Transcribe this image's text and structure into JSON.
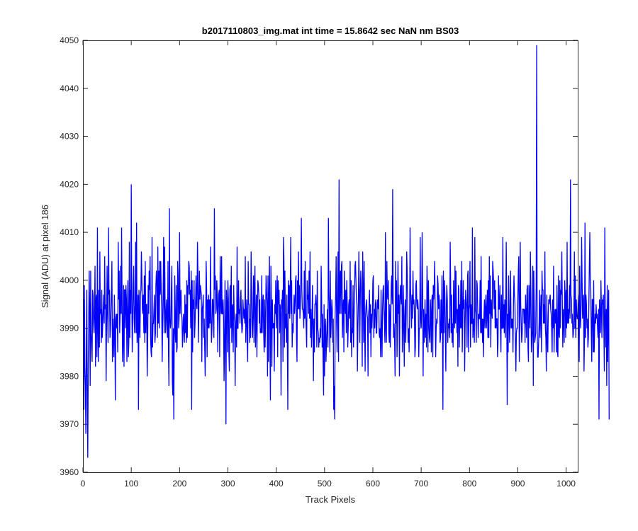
{
  "chart_data": {
    "type": "line",
    "title": "b2017110803_img.mat int time = 15.8642 sec  NaN nm BS03",
    "xlabel": "Track Pixels",
    "ylabel": "Signal (ADU) at pixel 186",
    "xlim": [
      0,
      1024
    ],
    "ylim": [
      3960,
      4050
    ],
    "xticks": [
      "0",
      "100",
      "200",
      "300",
      "400",
      "500",
      "600",
      "700",
      "800",
      "900",
      "1000"
    ],
    "yticks": [
      "3960",
      "3970",
      "3980",
      "3990",
      "4000",
      "4010",
      "4020",
      "4030",
      "4040",
      "4050"
    ],
    "grid": false,
    "series": [
      {
        "color": "#0000ff",
        "x_start": 1,
        "x_step": 1,
        "values": [
          3996,
          3973,
          3999,
          3982,
          3978,
          3968,
          3986,
          3998,
          3974,
          3963,
          3982,
          3992,
          4002,
          3993,
          3978,
          4002,
          3989,
          3986,
          3983,
          3998,
          3997,
          3991,
          3989,
          3994,
          4003,
          3982,
          3996,
          3997,
          3984,
          4011,
          3990,
          3983,
          3998,
          3986,
          4006,
          3993,
          3994,
          3987,
          3998,
          3988,
          3991,
          3994,
          3997,
          3991,
          4005,
          3994,
          3995,
          3979,
          3992,
          4003,
          3993,
          3987,
          4011,
          3997,
          3998,
          3988,
          3990,
          3994,
          3998,
          4004,
          3983,
          3992,
          3988,
          3984,
          3997,
          3991,
          3975,
          3992,
          3993,
          3990,
          3993,
          3985,
          4008,
          3996,
          4002,
          3989,
          3993,
          4003,
          3993,
          4011,
          3996,
          3983,
          3987,
          3999,
          3982,
          3998,
          3998,
          3990,
          3999,
          3996,
          3983,
          3993,
          4000,
          3984,
          3987,
          4008,
          3988,
          3998,
          3993,
          4020,
          3998,
          3985,
          3991,
          3999,
          4003,
          3992,
          3989,
          3995,
          4008,
          3989,
          4012,
          3987,
          3992,
          3997,
          3973,
          3998,
          3991,
          3988,
          3997,
          3998,
          4006,
          4000,
          3994,
          3993,
          3997,
          3989,
          4001,
          3987,
          4004,
          3989,
          3995,
          3995,
          3980,
          3987,
          3999,
          3993,
          4002,
          3998,
          4005,
          3988,
          3985,
          3984,
          4009,
          3986,
          3991,
          3991,
          3994,
          3997,
          3987,
          3989,
          3999,
          4002,
          3999,
          3988,
          4007,
          3991,
          4002,
          3990,
          4004,
          3997,
          4004,
          3998,
          3994,
          3983,
          3991,
          3998,
          4009,
          3989,
          4007,
          3996,
          3989,
          3993,
          3996,
          3990,
          3988,
          4004,
          3985,
          3978,
          4015,
          3992,
          3990,
          3991,
          3998,
          4003,
          3979,
          3976,
          3990,
          3971,
          3988,
          4001,
          3989,
          3987,
          3999,
          3985,
          3986,
          4004,
          4001,
          3990,
          3992,
          4010,
          3993,
          3997,
          3998,
          3993,
          3992,
          3986,
          3989,
          3993,
          3990,
          3987,
          3997,
          3989,
          3995,
          3987,
          4000,
          3988,
          3999,
          3997,
          4004,
          4003,
          3997,
          3998,
          3990,
          4002,
          3973,
          4000,
          3985,
          3996,
          3994,
          4000,
          3988,
          3991,
          3995,
          4001,
          3995,
          3994,
          4008,
          4001,
          3987,
          3995,
          4002,
          3996,
          3999,
          3998,
          3997,
          3983,
          3994,
          3995,
          3997,
          3988,
          3992,
          3986,
          3980,
          3991,
          4004,
          3998,
          3984,
          3996,
          3990,
          3997,
          3990,
          3996,
          3991,
          4007,
          3993,
          3987,
          3990,
          3996,
          3996,
          3992,
          3988,
          4015,
          3998,
          4001,
          3993,
          3994,
          4000,
          3997,
          3985,
          3994,
          3997,
          3998,
          3984,
          4005,
          3996,
          3993,
          4005,
          3993,
          3993,
          3996,
          3992,
          3979,
          3985,
          4000,
          3990,
          3970,
          3998,
          3995,
          3985,
          4000,
          3996,
          3985,
          3981,
          3998,
          3999,
          3990,
          4003,
          3987,
          3994,
          3995,
          3985,
          3999,
          3993,
          3991,
          3978,
          3990,
          3993,
          3986,
          4007,
          3990,
          3990,
          4000,
          3993,
          3994,
          3991,
          3996,
          3998,
          3992,
          3989,
          3990,
          3996,
          3994,
          3992,
          3994,
          3991,
          4005,
          3987,
          3992,
          3996,
          3987,
          3983,
          4004,
          3995,
          3995,
          3987,
          3992,
          3988,
          4006,
          3999,
          3991,
          3988,
          3994,
          4001,
          3987,
          3999,
          4003,
          3986,
          3992,
          3997,
          3984,
          3994,
          4000,
          3999,
          3997,
          3991,
          3996,
          3989,
          3990,
          3989,
          4001,
          3989,
          3995,
          3997,
          3989,
          3985,
          3996,
          3986,
          3992,
          4001,
          3998,
          3995,
          3980,
          4001,
          3983,
          3996,
          4005,
          3987,
          3975,
          4003,
          3995,
          3982,
          3996,
          3990,
          3991,
          3991,
          3981,
          3995,
          3993,
          4000,
          3990,
          3995,
          4001,
          3984,
          4000,
          3995,
          3998,
          3989,
          3995,
          3993,
          3976,
          3996,
          3994,
          3998,
          3983,
          4009,
          4004,
          3986,
          4002,
          3990,
          3993,
          3987,
          3997,
          3987,
          3973,
          4000,
          3993,
          3999,
          3992,
          3998,
          4009,
          3993,
          4000,
          3986,
          3991,
          3989,
          3994,
          3997,
          3993,
          3995,
          4000,
          4001,
          3988,
          3983,
          4000,
          3994,
          4006,
          3994,
          3999,
          3992,
          3995,
          4001,
          4013,
          3998,
          3994,
          3994,
          3993,
          3990,
          4002,
          3992,
          4004,
          3993,
          3990,
          3986,
          4000,
          3996,
          3997,
          3993,
          4002,
          3992,
          4006,
          3988,
          3994,
          3986,
          3991,
          3999,
          3990,
          3979,
          3992,
          3985,
          3995,
          3995,
          3997,
          3994,
          3986,
          4002,
          3990,
          3989,
          3986,
          3988,
          3987,
          3990,
          3988,
          4003,
          3996,
          3986,
          3993,
          3983,
          3976,
          3995,
          3980,
          3990,
          3992,
          3983,
          3987,
          3990,
          3994,
          3986,
          4013,
          3998,
          3993,
          3985,
          4002,
          3988,
          3992,
          3996,
          3994,
          3987,
          3992,
          3973,
          3978,
          3971,
          3993,
          3997,
          4005,
          3991,
          3985,
          3999,
          4006,
          3983,
          4021,
          3993,
          3999,
          4002,
          3993,
          4003,
          4004,
          3988,
          3994,
          3996,
          3985,
          4002,
          3995,
          3993,
          3998,
          3989,
          4000,
          3995,
          3986,
          3990,
          3995,
          3996,
          3992,
          4004,
          3987,
          4000,
          3984,
          3990,
          3989,
          3999,
          3986,
          3992,
          3997,
          4003,
          4004,
          4000,
          3996,
          3995,
          3981,
          3990,
          3996,
          4006,
          3998,
          3987,
          3997,
          4002,
          3999,
          3993,
          3982,
          4006,
          3998,
          3987,
          4004,
          3990,
          3981,
          3993,
          3995,
          3996,
          3993,
          3992,
          3980,
          3993,
          3994,
          3998,
          3989,
          3995,
          3984,
          3993,
          3990,
          3993,
          4000,
          4001,
          3988,
          3994,
          3990,
          3995,
          3996,
          3989,
          3989,
          3995,
          3996,
          3994,
          3999,
          3989,
          3988,
          3990,
          3984,
          3998,
          3989,
          3984,
          3994,
          3998,
          3999,
          3994,
          3991,
          3987,
          4010,
          3990,
          3987,
          4004,
          3997,
          3996,
          4000,
          3989,
          3987,
          3995,
          3986,
          3991,
          3999,
          4001,
          3995,
          4019,
          3996,
          3988,
          3991,
          3987,
          3980,
          4004,
          3991,
          4000,
          3984,
          3991,
          4004,
          3993,
          3997,
          3980,
          3995,
          3999,
          3997,
          3995,
          4005,
          3985,
          3990,
          3999,
          3990,
          3982,
          3993,
          3996,
          3987,
          3993,
          4006,
          4002,
          3995,
          3987,
          3990,
          3985,
          3991,
          4011,
          3998,
          3995,
          3990,
          3997,
          3992,
          4002,
          3995,
          3996,
          3993,
          3984,
          3986,
          3999,
          4000,
          3995,
          3994,
          3996,
          3994,
          3984,
          3990,
          3990,
          4009,
          3992,
          3990,
          3994,
          4010,
          3998,
          3980,
          3994,
          3987,
          3990,
          3996,
          3988,
          3993,
          3986,
          4003,
          3998,
          3985,
          4000,
          3991,
          3988,
          3987,
          3996,
          3993,
          3985,
          3996,
          3997,
          3984,
          3999,
          3996,
          3999,
          4004,
          3993,
          3984,
          3990,
          3992,
          3991,
          4001,
          3999,
          3994,
          3997,
          3995,
          3987,
          3988,
          3996,
          3989,
          4001,
          3991,
          3973,
          4002,
          3989,
          4000,
          3997,
          3988,
          3981,
          3994,
          3999,
          3996,
          3987,
          3991,
          3990,
          3992,
          3988,
          4008,
          3999,
          3989,
          3997,
          3987,
          3991,
          3986,
          4000,
          3992,
          3990,
          4003,
          3991,
          4002,
          3994,
          3989,
          3994,
          3982,
          3999,
          3998,
          3986,
          3995,
          3990,
          4000,
          3990,
          4004,
          3985,
          3993,
          4000,
          3994,
          3996,
          3981,
          3991,
          3998,
          3996,
          3994,
          3986,
          4001,
          4002,
          3985,
          3994,
          3995,
          4004,
          3986,
          3995,
          3991,
          3991,
          4011,
          3988,
          3992,
          3991,
          3987,
          4009,
          3994,
          3993,
          3987,
          4000,
          3999,
          3994,
          3988,
          3993,
          3992,
          3992,
          4000,
          3989,
          4005,
          3989,
          3992,
          3987,
          3992,
          3984,
          3993,
          3996,
          3990,
          3994,
          3997,
          3990,
          3993,
          3998,
          3988,
          4000,
          3988,
          4005,
          3993,
          4001,
          3986,
          3996,
          3994,
          3992,
          4004,
          4002,
          3999,
          3994,
          4000,
          3990,
          3998,
          3990,
          3992,
          3992,
          3984,
          3987,
          4001,
          3994,
          3994,
          3999,
          3990,
          3985,
          3997,
          3990,
          3990,
          4009,
          3990,
          3995,
          3989,
          3996,
          3988,
          3993,
          4008,
          3995,
          3974,
          3993,
          3985,
          4001,
          3992,
          3987,
          3995,
          4002,
          3990,
          3992,
          3990,
          3992,
          3985,
          3996,
          4001,
          3997,
          3995,
          3987,
          3981,
          3989,
          3990,
          3990,
          3996,
          4002,
          4005,
          3983,
          3992,
          4008,
          3995,
          3991,
          3987,
          3989,
          3994,
          3994,
          3994,
          3991,
          3994,
          3987,
          3997,
          3993,
          3988,
          3998,
          3999,
          3986,
          3983,
          3999,
          3995,
          3990,
          4006,
          3998,
          3985,
          3987,
          3990,
          4003,
          3978,
          4002,
          3995,
          3987,
          3988,
          3989,
          3999,
          4049,
          3991,
          3984,
          3984,
          3987,
          3991,
          3998,
          3988,
          3993,
          3997,
          3985,
          4002,
          3998,
          3998,
          3991,
          3995,
          3991,
          4006,
          3990,
          3988,
          3981,
          3997,
          3988,
          3985,
          3993,
          3996,
          3995,
          3996,
          3997,
          3994,
          3993,
          3990,
          3985,
          3996,
          3990,
          4003,
          3985,
          3992,
          3994,
          3991,
          3994,
          3985,
          3999,
          3985,
          3984,
          4001,
          3989,
          3988,
          4000,
          3990,
          3998,
          3997,
          4006,
          3996,
          3986,
          3994,
          3992,
          3987,
          4000,
          3997,
          3988,
          3998,
          3990,
          4008,
          3991,
          3994,
          3991,
          3994,
          3999,
          3992,
          4021,
          3997,
          3996,
          3991,
          3993,
          3988,
          3989,
          3992,
          4006,
          3990,
          4001,
          3988,
          3996,
          3993,
          3992,
          3992,
          3997,
          3994,
          3983,
          4003,
          3993,
          3990,
          3995,
          4009,
          4000,
          3992,
          3995,
          3997,
          3981,
          3988,
          4012,
          3988,
          3997,
          3995,
          3990,
          3992,
          3986,
          3988,
          3995,
          4003,
          4010,
          3999,
          3998,
          3989,
          3983,
          3996,
          3996,
          3985,
          4000,
          3985,
          3990,
          3993,
          3991,
          3995,
          3992,
          3993,
          3990,
          3988,
          3994,
          3971,
          3996,
          3992,
          3989,
          4000,
          3994,
          3988,
          3996,
          3995,
          3997,
          3990,
          3981,
          4011,
          3992,
          3986,
          3994,
          3978,
          3999,
          3983,
          3992,
          3998,
          3971
        ]
      }
    ]
  }
}
